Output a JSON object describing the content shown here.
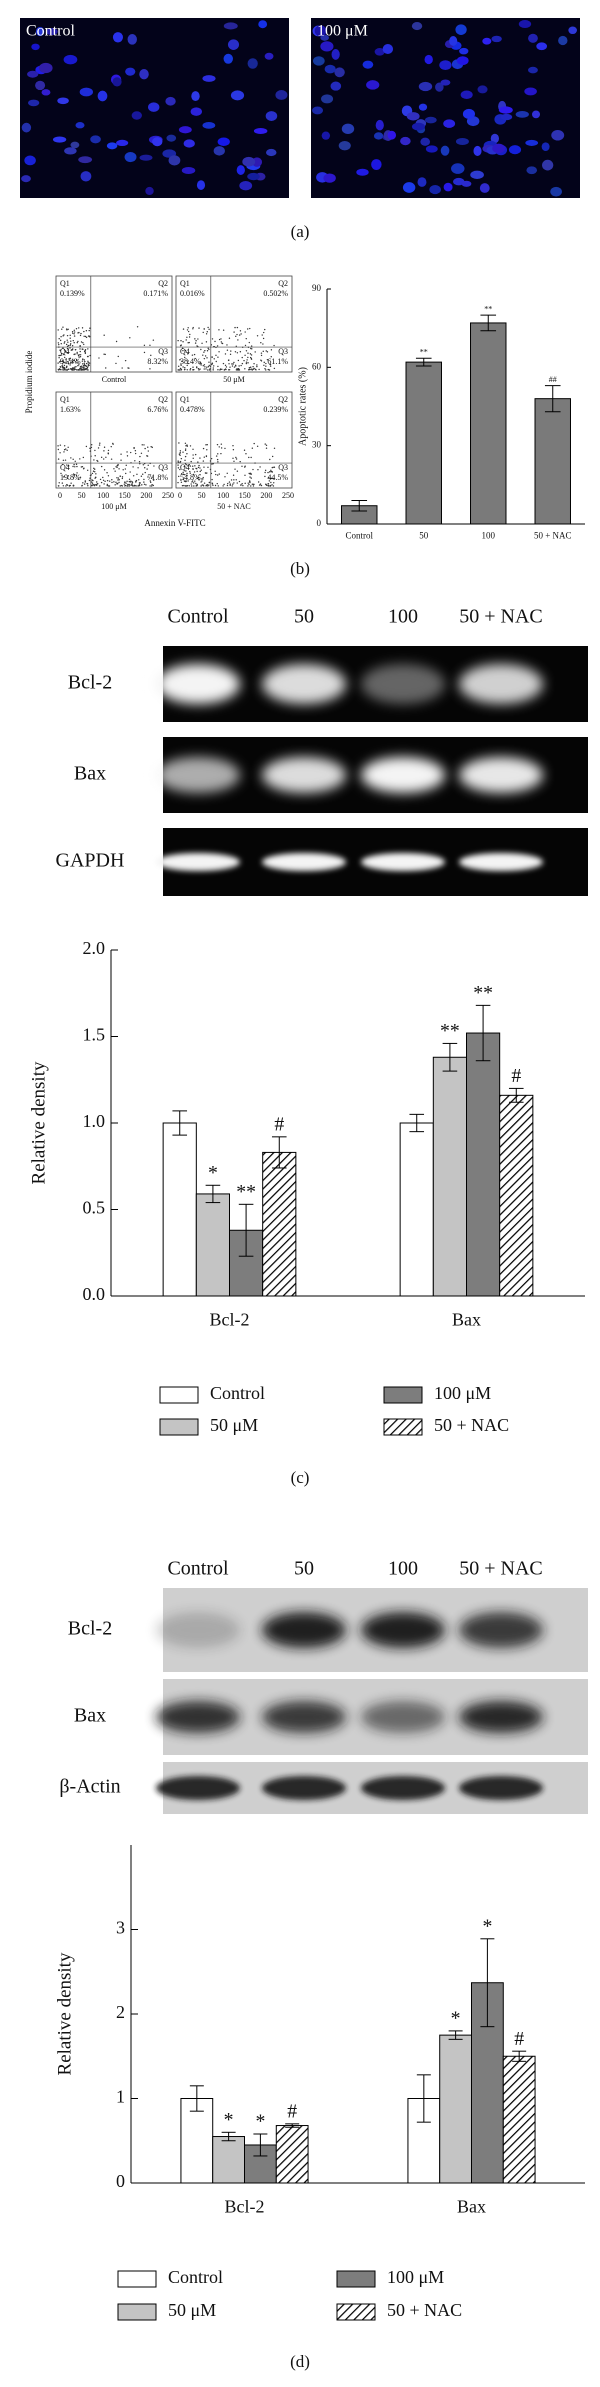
{
  "panel_a": {
    "caption": "(a)",
    "images": [
      {
        "label": "Control"
      },
      {
        "label": "100 μM"
      }
    ]
  },
  "panel_b": {
    "caption": "(b)",
    "flow": {
      "y_label": "Propidium iodide",
      "x_label": "Annexin V-FITC",
      "x_tick_labels": [
        "0",
        "50",
        "100",
        "150",
        "200",
        "250"
      ],
      "plots": [
        {
          "label": "Control",
          "quadrants": [
            {
              "name": "Q1",
              "value": "0.139%"
            },
            {
              "name": "Q2",
              "value": "0.171%"
            },
            {
              "name": "Q3",
              "value": "8.32%"
            },
            {
              "name": "Q4",
              "value": "91.4%"
            }
          ]
        },
        {
          "label": "50 μM",
          "quadrants": [
            {
              "name": "Q1",
              "value": "0.016%"
            },
            {
              "name": "Q2",
              "value": "0.502%"
            },
            {
              "name": "Q3",
              "value": "61.1%"
            },
            {
              "name": "Q4",
              "value": "38.4%"
            }
          ]
        },
        {
          "label": "100 μM",
          "quadrants": [
            {
              "name": "Q1",
              "value": "1.63%"
            },
            {
              "name": "Q2",
              "value": "6.76%"
            },
            {
              "name": "Q3",
              "value": "71.8%"
            },
            {
              "name": "Q4",
              "value": "19.8%"
            }
          ]
        },
        {
          "label": "50 + NAC",
          "quadrants": [
            {
              "name": "Q1",
              "value": "0.478%"
            },
            {
              "name": "Q2",
              "value": "0.239%"
            },
            {
              "name": "Q3",
              "value": "44.5%"
            },
            {
              "name": "Q4",
              "value": "54.8%"
            }
          ]
        }
      ]
    }
  },
  "panel_c": {
    "caption": "(c)",
    "gel": {
      "columns": [
        "Control",
        "50",
        "100",
        "50 + NAC"
      ],
      "rows": [
        "Bcl-2",
        "Bax",
        "GAPDH"
      ]
    }
  },
  "panel_d": {
    "caption": "(d)",
    "blot": {
      "columns": [
        "Control",
        "50",
        "100",
        "50 + NAC"
      ],
      "rows": [
        "Bcl-2",
        "Bax",
        "β-Actin"
      ]
    }
  },
  "chart_data": [
    {
      "type": "bar",
      "ylabel": "Apoptotic rates (%)",
      "categories": [
        "Control",
        "50",
        "100",
        "50 + NAC"
      ],
      "values": [
        7,
        62,
        77,
        48
      ],
      "errors": [
        2,
        1.5,
        3,
        5
      ],
      "annotations": [
        null,
        "**",
        "**",
        "##"
      ],
      "color": "#7a7a7a",
      "ylim": [
        0,
        90
      ],
      "yticks": [
        0,
        30,
        60,
        90
      ]
    },
    {
      "type": "bar",
      "ylabel": "Relative density",
      "categories": [
        "Bcl-2",
        "Bax"
      ],
      "series": [
        {
          "name": "Control",
          "color": "#ffffff",
          "values": [
            1.0,
            1.0
          ],
          "errors": [
            0.07,
            0.05
          ]
        },
        {
          "name": "50 μM",
          "color": "#c4c4c4",
          "values": [
            0.59,
            1.38
          ],
          "errors": [
            0.05,
            0.08
          ],
          "annotations": [
            "*",
            "**"
          ]
        },
        {
          "name": "100 μM",
          "color": "#7d7d7d",
          "values": [
            0.38,
            1.52
          ],
          "errors": [
            0.15,
            0.16
          ],
          "annotations": [
            "**",
            "**"
          ]
        },
        {
          "name": "50 + NAC",
          "color": "#ffffff",
          "hatch": true,
          "values": [
            0.83,
            1.16
          ],
          "errors": [
            0.09,
            0.04
          ],
          "annotations": [
            "#",
            "#"
          ]
        }
      ],
      "ylim": [
        0,
        2
      ],
      "yticks": [
        {
          "value": 0,
          "label": "0.0"
        },
        {
          "value": 0.5,
          "label": "0.5"
        },
        {
          "value": 1,
          "label": "1.0"
        },
        {
          "value": 1.5,
          "label": "1.5"
        },
        {
          "value": 2,
          "label": "2.0"
        }
      ]
    },
    {
      "type": "bar",
      "ylabel": "Relative density",
      "categories": [
        "Bcl-2",
        "Bax"
      ],
      "series": [
        {
          "name": "Control",
          "color": "#ffffff",
          "values": [
            1.0,
            1.0
          ],
          "errors": [
            0.15,
            0.28
          ]
        },
        {
          "name": "50 μM",
          "color": "#c4c4c4",
          "values": [
            0.55,
            1.75
          ],
          "errors": [
            0.05,
            0.05
          ],
          "annotations": [
            "*",
            "*"
          ]
        },
        {
          "name": "100 μM",
          "color": "#7d7d7d",
          "values": [
            0.45,
            2.37
          ],
          "errors": [
            0.13,
            0.52
          ],
          "annotations": [
            "*",
            "*"
          ]
        },
        {
          "name": "50 + NAC",
          "color": "#ffffff",
          "hatch": true,
          "values": [
            0.68,
            1.5
          ],
          "errors": [
            0.02,
            0.06
          ],
          "annotations": [
            "#",
            "#"
          ]
        }
      ],
      "ylim": [
        0,
        4
      ],
      "yticks": [
        0,
        1,
        2,
        3
      ]
    }
  ]
}
